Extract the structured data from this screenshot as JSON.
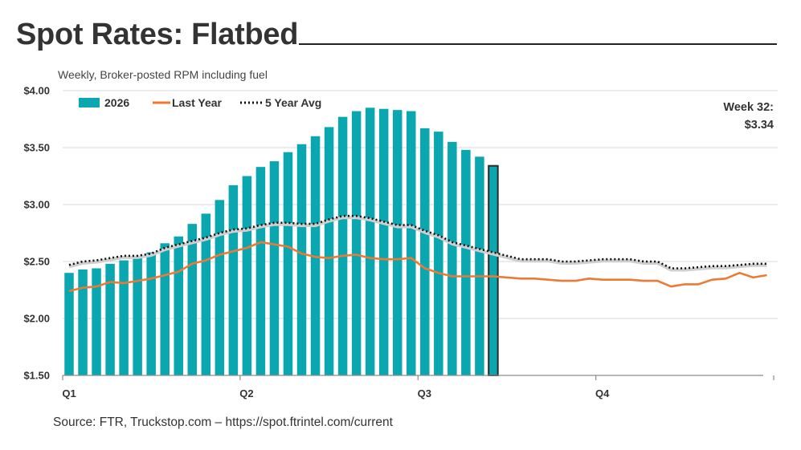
{
  "title": "Spot Rates: Flatbed",
  "subtitle": "Weekly, Broker-posted RPM including fuel",
  "source": "Source: FTR, Truckstop.com – https://spot.ftrintel.com/current",
  "callout": {
    "line1": "Week 32:",
    "line2": "$3.34"
  },
  "colors": {
    "bars": "#0aa7b1",
    "last_year": "#ec7a35",
    "avg": "#111111",
    "grid": "#d9d9d9",
    "axis": "#8c8c8c"
  },
  "chart_data": {
    "type": "bar",
    "title": "Spot Rates: Flatbed",
    "ylabel": "",
    "xlabel": "",
    "ylim": [
      1.5,
      4.0
    ],
    "yticks": [
      "$4.00",
      "$3.50",
      "$3.00",
      "$2.50",
      "$2.00",
      "$1.50"
    ],
    "ytick_values": [
      4.0,
      3.5,
      3.0,
      2.5,
      2.0,
      1.5
    ],
    "quarters": [
      "Q1",
      "Q2",
      "Q3",
      "Q4"
    ],
    "quarter_start_weeks": [
      1,
      14,
      27,
      40
    ],
    "weeks_in_year": 52,
    "grid": true,
    "legend_position": "top-left",
    "highlight_week": 32,
    "series": [
      {
        "name": "2026",
        "kind": "bar",
        "weeks": [
          1,
          2,
          3,
          4,
          5,
          6,
          7,
          8,
          9,
          10,
          11,
          12,
          13,
          14,
          15,
          16,
          17,
          18,
          19,
          20,
          21,
          22,
          23,
          24,
          25,
          26,
          27,
          28,
          29,
          30,
          31,
          32
        ],
        "values": [
          2.4,
          2.43,
          2.44,
          2.48,
          2.51,
          2.55,
          2.58,
          2.66,
          2.72,
          2.83,
          2.92,
          3.04,
          3.17,
          3.25,
          3.33,
          3.38,
          3.46,
          3.53,
          3.6,
          3.68,
          3.77,
          3.82,
          3.85,
          3.84,
          3.83,
          3.82,
          3.67,
          3.64,
          3.55,
          3.48,
          3.42,
          3.34
        ]
      },
      {
        "name": "Last Year",
        "kind": "line",
        "weeks": [
          1,
          2,
          3,
          4,
          5,
          6,
          7,
          8,
          9,
          10,
          11,
          12,
          13,
          14,
          15,
          16,
          17,
          18,
          19,
          20,
          21,
          22,
          23,
          24,
          25,
          26,
          27,
          28,
          29,
          30,
          31,
          32,
          33,
          34,
          35,
          36,
          37,
          38,
          39,
          40,
          41,
          42,
          43,
          44,
          45,
          46,
          47,
          48,
          49,
          50,
          51,
          52
        ],
        "values": [
          2.24,
          2.27,
          2.28,
          2.32,
          2.31,
          2.33,
          2.35,
          2.38,
          2.41,
          2.48,
          2.51,
          2.56,
          2.59,
          2.62,
          2.67,
          2.65,
          2.63,
          2.57,
          2.54,
          2.53,
          2.55,
          2.56,
          2.53,
          2.52,
          2.52,
          2.53,
          2.44,
          2.4,
          2.37,
          2.37,
          2.37,
          2.37,
          2.36,
          2.35,
          2.35,
          2.34,
          2.33,
          2.33,
          2.35,
          2.34,
          2.34,
          2.34,
          2.33,
          2.33,
          2.28,
          2.3,
          2.3,
          2.34,
          2.35,
          2.4,
          2.36,
          2.38
        ]
      },
      {
        "name": "5 Year Avg",
        "kind": "dotted-line",
        "weeks": [
          1,
          2,
          3,
          4,
          5,
          6,
          7,
          8,
          9,
          10,
          11,
          12,
          13,
          14,
          15,
          16,
          17,
          18,
          19,
          20,
          21,
          22,
          23,
          24,
          25,
          26,
          27,
          28,
          29,
          30,
          31,
          32,
          33,
          34,
          35,
          36,
          37,
          38,
          39,
          40,
          41,
          42,
          43,
          44,
          45,
          46,
          47,
          48,
          49,
          50,
          51,
          52
        ],
        "values": [
          2.47,
          2.5,
          2.51,
          2.53,
          2.55,
          2.55,
          2.57,
          2.62,
          2.65,
          2.68,
          2.71,
          2.75,
          2.78,
          2.79,
          2.82,
          2.84,
          2.84,
          2.83,
          2.83,
          2.87,
          2.9,
          2.9,
          2.88,
          2.85,
          2.82,
          2.82,
          2.77,
          2.73,
          2.67,
          2.64,
          2.61,
          2.58,
          2.55,
          2.52,
          2.52,
          2.52,
          2.5,
          2.5,
          2.51,
          2.52,
          2.52,
          2.52,
          2.5,
          2.5,
          2.44,
          2.44,
          2.45,
          2.46,
          2.46,
          2.47,
          2.48,
          2.48
        ]
      }
    ]
  }
}
